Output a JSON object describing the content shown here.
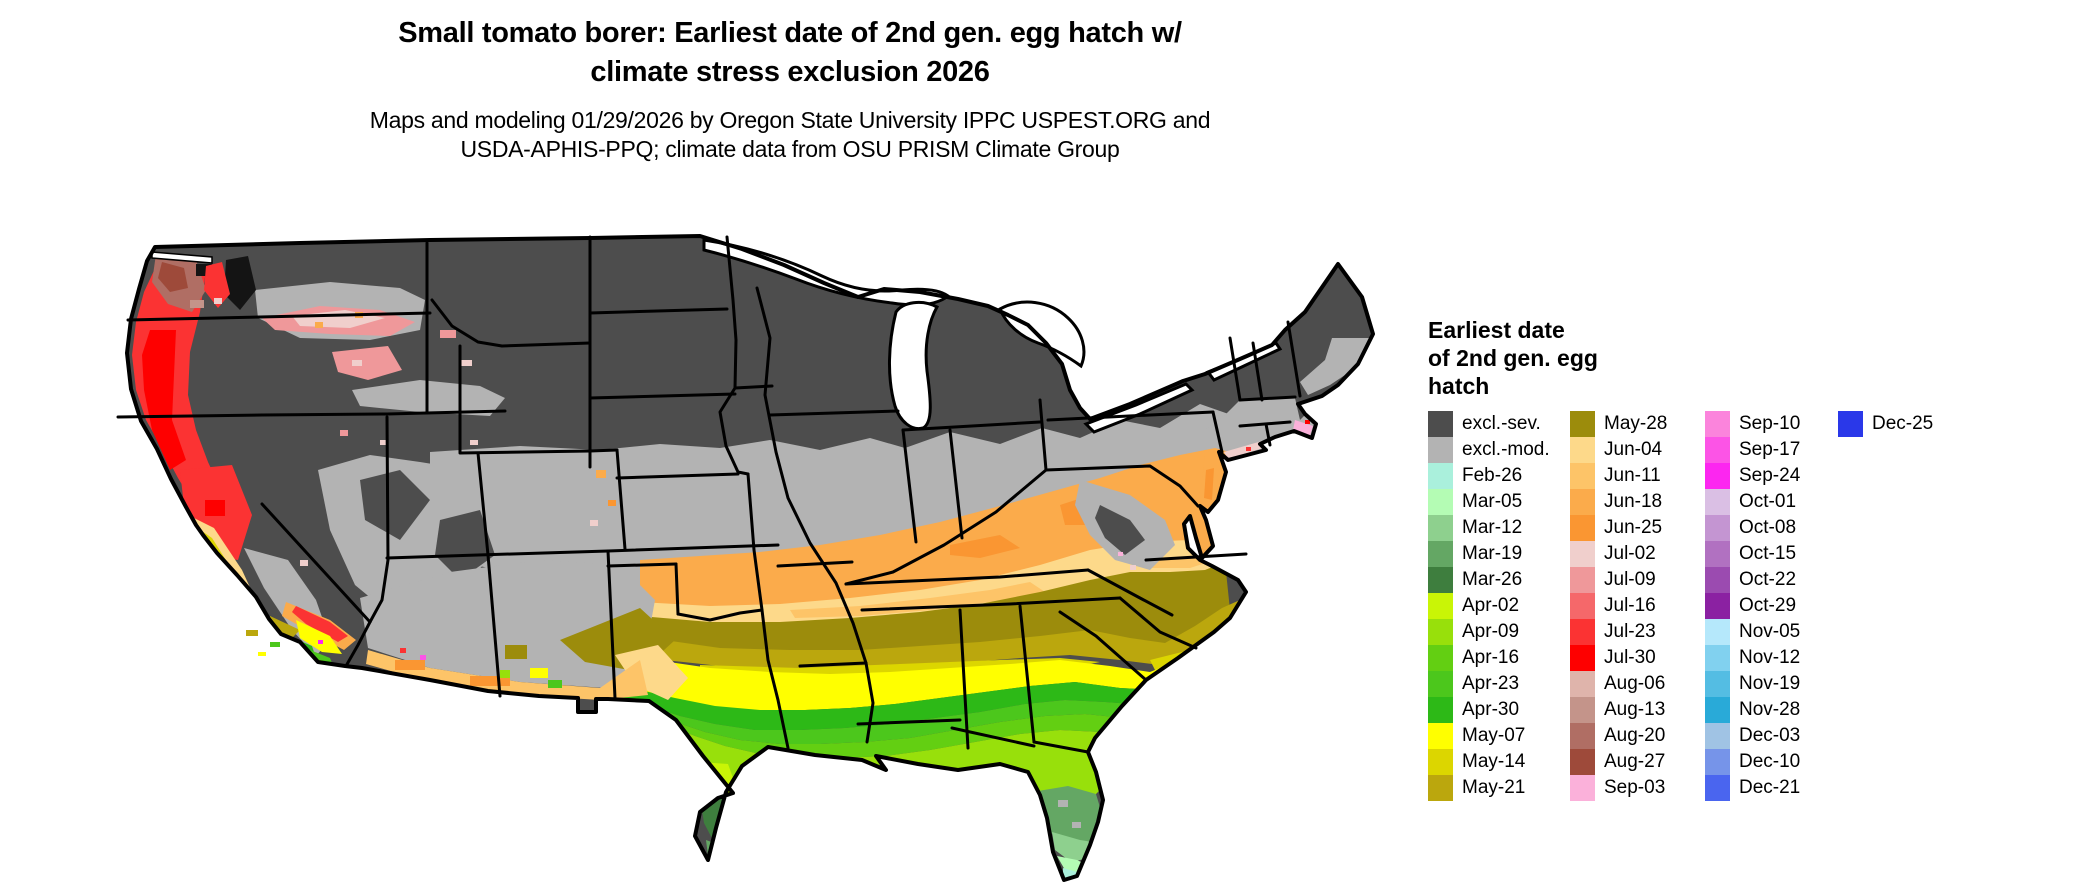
{
  "title": {
    "line1": "Small tomato borer: Earliest date of 2nd gen. egg hatch w/",
    "line2": "climate stress exclusion 2026"
  },
  "subtitle": {
    "line1": "Maps and modeling 01/29/2026 by Oregon State University IPPC USPEST.ORG and",
    "line2": "USDA-APHIS-PPQ; climate data from OSU PRISM Climate Group"
  },
  "legend": {
    "title_lines": [
      "Earliest date",
      "of 2nd gen. egg",
      "hatch"
    ],
    "columns": [
      [
        {
          "label": "excl.-sev.",
          "key": "excl_sev"
        },
        {
          "label": "excl.-mod.",
          "key": "excl_mod"
        },
        {
          "label": "Feb-26",
          "key": "feb26"
        },
        {
          "label": "Mar-05",
          "key": "mar05"
        },
        {
          "label": "Mar-12",
          "key": "mar12"
        },
        {
          "label": "Mar-19",
          "key": "mar19"
        },
        {
          "label": "Mar-26",
          "key": "mar26"
        },
        {
          "label": "Apr-02",
          "key": "apr02"
        },
        {
          "label": "Apr-09",
          "key": "apr09"
        },
        {
          "label": "Apr-16",
          "key": "apr16"
        },
        {
          "label": "Apr-23",
          "key": "apr23"
        },
        {
          "label": "Apr-30",
          "key": "apr30"
        },
        {
          "label": "May-07",
          "key": "may07"
        },
        {
          "label": "May-14",
          "key": "may14"
        },
        {
          "label": "May-21",
          "key": "may21"
        }
      ],
      [
        {
          "label": "May-28",
          "key": "may28"
        },
        {
          "label": "Jun-04",
          "key": "jun04"
        },
        {
          "label": "Jun-11",
          "key": "jun11"
        },
        {
          "label": "Jun-18",
          "key": "jun18"
        },
        {
          "label": "Jun-25",
          "key": "jun25"
        },
        {
          "label": "Jul-02",
          "key": "jul02"
        },
        {
          "label": "Jul-09",
          "key": "jul09"
        },
        {
          "label": "Jul-16",
          "key": "jul16"
        },
        {
          "label": "Jul-23",
          "key": "jul23"
        },
        {
          "label": "Jul-30",
          "key": "jul30"
        },
        {
          "label": "Aug-06",
          "key": "aug06"
        },
        {
          "label": "Aug-13",
          "key": "aug13"
        },
        {
          "label": "Aug-20",
          "key": "aug20"
        },
        {
          "label": "Aug-27",
          "key": "aug27"
        },
        {
          "label": "Sep-03",
          "key": "sep03"
        }
      ],
      [
        {
          "label": "Sep-10",
          "key": "sep10"
        },
        {
          "label": "Sep-17",
          "key": "sep17"
        },
        {
          "label": "Sep-24",
          "key": "sep24"
        },
        {
          "label": "Oct-01",
          "key": "oct01"
        },
        {
          "label": "Oct-08",
          "key": "oct08"
        },
        {
          "label": "Oct-15",
          "key": "oct15"
        },
        {
          "label": "Oct-22",
          "key": "oct22"
        },
        {
          "label": "Oct-29",
          "key": "oct29"
        },
        {
          "label": "Nov-05",
          "key": "nov05"
        },
        {
          "label": "Nov-12",
          "key": "nov12"
        },
        {
          "label": "Nov-19",
          "key": "nov19"
        },
        {
          "label": "Nov-28",
          "key": "nov28"
        },
        {
          "label": "Dec-03",
          "key": "dec03"
        },
        {
          "label": "Dec-10",
          "key": "dec10"
        },
        {
          "label": "Dec-21",
          "key": "dec21"
        }
      ],
      [
        {
          "label": "Dec-25",
          "key": "dec25"
        }
      ]
    ]
  },
  "map": {
    "region": "Continental United States",
    "description": "Raster map of earliest 2nd generation egg hatch date; northern states excluded (severe), central band excluded (moderate), dates get earlier toward the Gulf Coast, south Texas and Florida; Pacific coast shows late Jul-Aug dates.",
    "palette": {
      "excl_sev": "#4d4d4d",
      "excl_mod": "#b3b3b3",
      "feb26": "#aaf0dc",
      "mar05": "#b4fcb4",
      "mar12": "#8ed08e",
      "mar19": "#64a764",
      "mar26": "#3e7e3e",
      "apr02": "#c9f506",
      "apr09": "#98e00b",
      "apr16": "#63cf12",
      "apr23": "#4cc71c",
      "apr30": "#2db917",
      "may07": "#ffff00",
      "may14": "#dcd600",
      "may21": "#bba70d",
      "may28": "#9c8c0c",
      "jun04": "#fdd98a",
      "jun11": "#fdc468",
      "jun18": "#fbab4b",
      "jun25": "#fa9632",
      "jul02": "#f0cfcc",
      "jul09": "#ef989a",
      "jul16": "#f5686a",
      "jul23": "#fb3333",
      "jul30": "#fe0000",
      "aug06": "#dfb4ab",
      "aug13": "#c4948a",
      "aug20": "#b06e64",
      "aug27": "#9e4a3a",
      "sep03": "#fbb1da",
      "sep10": "#fb84dc",
      "sep17": "#fc54e6",
      "sep24": "#fc26f0",
      "oct01": "#dabfe4",
      "oct08": "#c495d2",
      "oct15": "#b171c1",
      "oct22": "#9b4bb0",
      "oct29": "#8b21a2",
      "nov05": "#b5e8fb",
      "nov12": "#81d1ef",
      "nov19": "#54bde3",
      "nov28": "#29aad8",
      "dec03": "#a0c3e4",
      "dec10": "#7694e9",
      "dec21": "#4a65ef",
      "dec25": "#2a38e9",
      "water": "#ffffff",
      "border": "#000000",
      "terrain_dark": "#141414"
    }
  }
}
